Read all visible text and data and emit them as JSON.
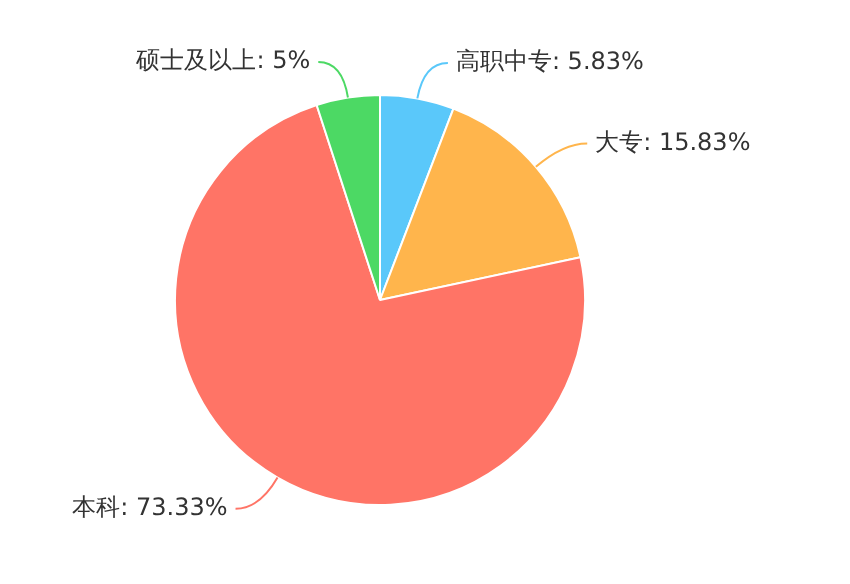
{
  "chart_data": {
    "type": "pie",
    "categories": [
      "高职中专",
      "大专",
      "本科",
      "硕士及以上"
    ],
    "values": [
      5.83,
      15.83,
      73.33,
      5
    ],
    "value_labels": [
      "5.83%",
      "15.83%",
      "73.33%",
      "5%"
    ],
    "colors": [
      "#5ac8fa",
      "#ffb54c",
      "#ff7466",
      "#4cd964"
    ],
    "legend": false
  }
}
